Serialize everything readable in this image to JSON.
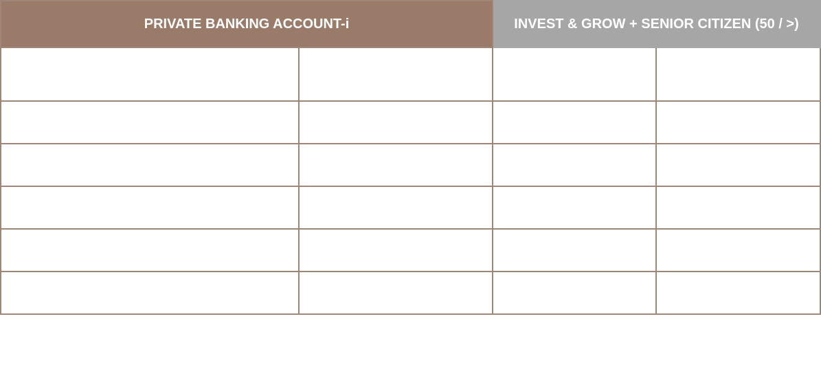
{
  "table": {
    "headers": {
      "left": "PRIVATE BANKING ACCOUNT-i",
      "right": "INVEST & GROW + SENIOR CITIZEN (50 / >)"
    },
    "rows": [
      [
        "",
        "",
        "",
        ""
      ],
      [
        "",
        "",
        "",
        ""
      ],
      [
        "",
        "",
        "",
        ""
      ],
      [
        "",
        "",
        "",
        ""
      ],
      [
        "",
        "",
        "",
        ""
      ],
      [
        "",
        "",
        "",
        ""
      ]
    ]
  },
  "colors": {
    "header_left_bg": "#9a7b6a",
    "header_right_bg": "#a6a6a6",
    "border": "#a08677"
  }
}
